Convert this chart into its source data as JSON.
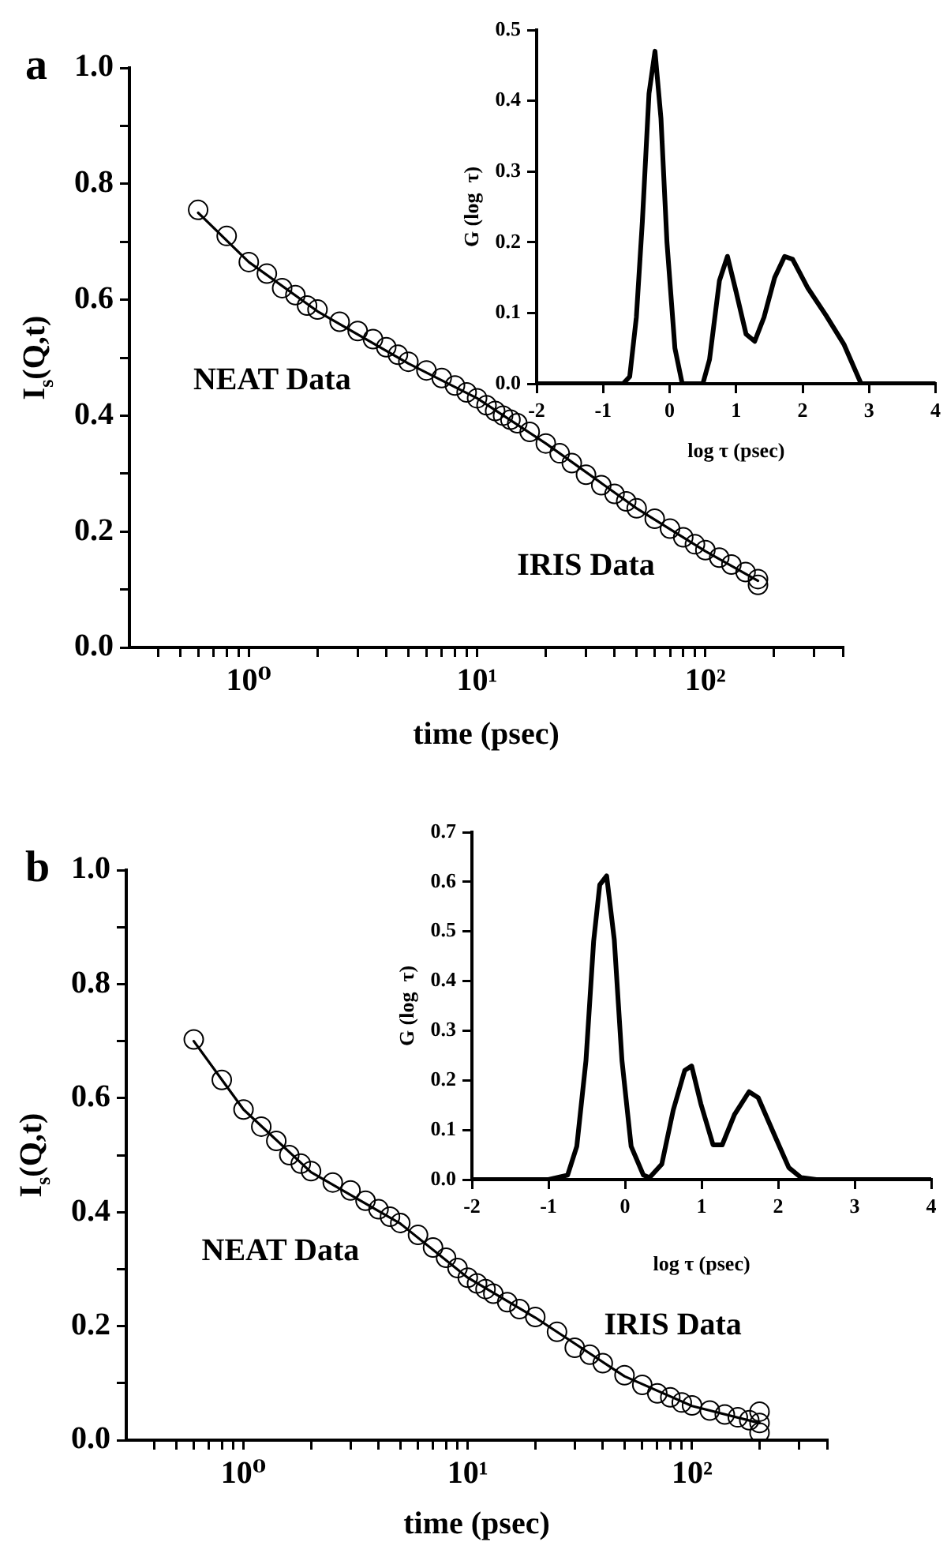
{
  "chart_data": [
    {
      "type": "scatter",
      "title": "a",
      "xlabel": "time (psec)",
      "ylabel": "I$_{s}$(Q,t)",
      "log": "x",
      "marker": "circle",
      "grid": false,
      "xlim": [
        0.3,
        400
      ],
      "xticks": [
        {
          "value": 0.4,
          "label": null
        },
        {
          "value": 0.5,
          "label": null
        },
        {
          "value": 0.6,
          "label": null
        },
        {
          "value": 0.7,
          "label": null
        },
        {
          "value": 0.8,
          "label": null
        },
        {
          "value": 0.9,
          "label": null
        },
        {
          "value": 1,
          "label": "10⁰"
        },
        {
          "value": 2,
          "label": null
        },
        {
          "value": 3,
          "label": null
        },
        {
          "value": 4,
          "label": null
        },
        {
          "value": 5,
          "label": null
        },
        {
          "value": 6,
          "label": null
        },
        {
          "value": 7,
          "label": null
        },
        {
          "value": 8,
          "label": null
        },
        {
          "value": 9,
          "label": null
        },
        {
          "value": 10,
          "label": "10¹"
        },
        {
          "value": 20,
          "label": null
        },
        {
          "value": 30,
          "label": null
        },
        {
          "value": 40,
          "label": null
        },
        {
          "value": 50,
          "label": null
        },
        {
          "value": 60,
          "label": null
        },
        {
          "value": 70,
          "label": null
        },
        {
          "value": 80,
          "label": null
        },
        {
          "value": 90,
          "label": null
        },
        {
          "value": 100,
          "label": "10²"
        },
        {
          "value": 200,
          "label": null
        },
        {
          "value": 300,
          "label": null
        },
        {
          "value": 400,
          "label": null
        }
      ],
      "ylim": [
        0,
        1
      ],
      "yticks": [
        {
          "value": 0,
          "label": "0.0"
        },
        {
          "value": 0.1,
          "label": null
        },
        0.2,
        {
          "value": 0.3,
          "label": null
        },
        0.4,
        {
          "value": 0.5,
          "label": null
        },
        0.6,
        {
          "value": 0.7,
          "label": null
        },
        0.8,
        {
          "value": 0.9,
          "label": null
        },
        {
          "value": 1,
          "label": "1.0"
        }
      ],
      "annotations": [
        "NEAT Data",
        "IRIS Data"
      ],
      "series": [
        {
          "color": "#000000",
          "x": [
            0.6,
            0.8,
            1.0,
            1.2,
            1.4,
            1.6,
            1.8,
            2,
            2.5,
            3,
            3.5,
            4,
            4.5,
            5,
            6,
            7,
            8,
            9,
            10,
            11,
            12,
            13,
            14,
            15,
            17,
            20,
            23,
            26,
            30,
            35,
            40,
            45,
            50,
            60,
            70,
            80,
            90,
            100,
            115,
            130,
            150,
            170,
            170
          ],
          "values": [
            0.755,
            0.71,
            0.665,
            0.645,
            0.62,
            0.608,
            0.59,
            0.583,
            0.562,
            0.546,
            0.532,
            0.518,
            0.505,
            0.493,
            0.478,
            0.465,
            0.452,
            0.44,
            0.43,
            0.418,
            0.408,
            0.4,
            0.393,
            0.387,
            0.372,
            0.352,
            0.335,
            0.318,
            0.298,
            0.28,
            0.265,
            0.252,
            0.24,
            0.222,
            0.205,
            0.19,
            0.178,
            0.168,
            0.155,
            0.143,
            0.13,
            0.118,
            0.108
          ]
        },
        {
          "type": "line",
          "marker": "none",
          "color": "#000000",
          "x": [
            0.6,
            1,
            2,
            5,
            10,
            20,
            50,
            100,
            170
          ],
          "values": [
            0.75,
            0.665,
            0.58,
            0.49,
            0.43,
            0.352,
            0.24,
            0.166,
            0.115
          ]
        }
      ]
    },
    {
      "type": "line",
      "xlabel": "log τ (psec)",
      "ylabel": "G (log  τ)",
      "marker": "none",
      "grid": false,
      "xlim": [
        -2,
        4
      ],
      "xticks": [
        -2,
        -1,
        0,
        1,
        2,
        3,
        4
      ],
      "ylim": [
        0,
        0.5
      ],
      "yticks": [
        {
          "value": 0,
          "label": "0.0"
        },
        0.1,
        0.2,
        0.3,
        0.4,
        0.5
      ],
      "series": [
        {
          "color": "#000000",
          "x": [
            -2,
            -1,
            -0.7,
            -0.6,
            -0.5,
            -0.41,
            -0.31,
            -0.22,
            -0.13,
            -0.04,
            0.08,
            0.19,
            0.5,
            0.6,
            0.75,
            0.87,
            1.0,
            1.15,
            1.28,
            1.42,
            1.58,
            1.73,
            1.85,
            2.08,
            2.35,
            2.62,
            2.88,
            4
          ],
          "values": [
            0,
            0,
            0,
            0.01,
            0.094,
            0.229,
            0.41,
            0.47,
            0.375,
            0.2,
            0.05,
            0,
            0,
            0.034,
            0.146,
            0.18,
            0.13,
            0.07,
            0.06,
            0.094,
            0.15,
            0.18,
            0.176,
            0.135,
            0.097,
            0.056,
            0,
            0
          ]
        }
      ]
    },
    {
      "type": "scatter",
      "title": "b",
      "xlabel": "time (psec)",
      "ylabel": "I$_{s}$(Q,t)",
      "log": "x",
      "marker": "circle",
      "grid": false,
      "xlim": [
        0.3,
        400
      ],
      "xticks": [
        {
          "value": 0.4,
          "label": null
        },
        {
          "value": 0.5,
          "label": null
        },
        {
          "value": 0.6,
          "label": null
        },
        {
          "value": 0.7,
          "label": null
        },
        {
          "value": 0.8,
          "label": null
        },
        {
          "value": 0.9,
          "label": null
        },
        {
          "value": 1,
          "label": "10⁰"
        },
        {
          "value": 2,
          "label": null
        },
        {
          "value": 3,
          "label": null
        },
        {
          "value": 4,
          "label": null
        },
        {
          "value": 5,
          "label": null
        },
        {
          "value": 6,
          "label": null
        },
        {
          "value": 7,
          "label": null
        },
        {
          "value": 8,
          "label": null
        },
        {
          "value": 9,
          "label": null
        },
        {
          "value": 10,
          "label": "10¹"
        },
        {
          "value": 20,
          "label": null
        },
        {
          "value": 30,
          "label": null
        },
        {
          "value": 40,
          "label": null
        },
        {
          "value": 50,
          "label": null
        },
        {
          "value": 60,
          "label": null
        },
        {
          "value": 70,
          "label": null
        },
        {
          "value": 80,
          "label": null
        },
        {
          "value": 90,
          "label": null
        },
        {
          "value": 100,
          "label": "10²"
        },
        {
          "value": 200,
          "label": null
        },
        {
          "value": 300,
          "label": null
        },
        {
          "value": 400,
          "label": null
        }
      ],
      "ylim": [
        0,
        1
      ],
      "yticks": [
        {
          "value": 0,
          "label": "0.0"
        },
        {
          "value": 0.1,
          "label": null
        },
        0.2,
        {
          "value": 0.3,
          "label": null
        },
        0.4,
        {
          "value": 0.5,
          "label": null
        },
        0.6,
        {
          "value": 0.7,
          "label": null
        },
        0.8,
        {
          "value": 0.9,
          "label": null
        },
        {
          "value": 1,
          "label": "1.0"
        }
      ],
      "annotations": [
        "NEAT Data",
        "IRIS Data"
      ],
      "series": [
        {
          "color": "#000000",
          "x": [
            0.6,
            0.8,
            1,
            1.2,
            1.4,
            1.6,
            1.8,
            2,
            2.5,
            3,
            3.5,
            4,
            4.5,
            5,
            6,
            7,
            8,
            9,
            10,
            11,
            12,
            13,
            15,
            17,
            20,
            25,
            30,
            35,
            40,
            50,
            60,
            70,
            80,
            90,
            100,
            120,
            140,
            160,
            180,
            200,
            200,
            200
          ],
          "values": [
            0.703,
            0.632,
            0.58,
            0.55,
            0.525,
            0.5,
            0.485,
            0.472,
            0.452,
            0.438,
            0.42,
            0.405,
            0.392,
            0.381,
            0.36,
            0.338,
            0.32,
            0.302,
            0.285,
            0.275,
            0.265,
            0.257,
            0.242,
            0.23,
            0.216,
            0.19,
            0.162,
            0.15,
            0.135,
            0.114,
            0.097,
            0.082,
            0.075,
            0.066,
            0.061,
            0.052,
            0.045,
            0.04,
            0.035,
            0.03,
            0.05,
            0.013
          ]
        },
        {
          "type": "line",
          "marker": "none",
          "color": "#000000",
          "x": [
            0.6,
            1,
            2,
            5,
            10,
            20,
            50,
            100,
            200
          ],
          "values": [
            0.7,
            0.58,
            0.47,
            0.38,
            0.285,
            0.215,
            0.112,
            0.06,
            0.03
          ]
        }
      ]
    },
    {
      "type": "line",
      "xlabel": "log τ (psec)",
      "ylabel": "G (log  τ)",
      "marker": "none",
      "grid": false,
      "xlim": [
        -2,
        4
      ],
      "xticks": [
        -2,
        -1,
        0,
        1,
        2,
        3,
        4
      ],
      "ylim": [
        0,
        0.7
      ],
      "yticks": [
        {
          "value": 0,
          "label": "0.0"
        },
        0.1,
        0.2,
        0.3,
        0.4,
        0.5,
        0.6,
        0.7
      ],
      "series": [
        {
          "color": "#000000",
          "x": [
            -2,
            -1,
            -0.75,
            -0.63,
            -0.51,
            -0.41,
            -0.33,
            -0.24,
            -0.14,
            -0.04,
            0.08,
            0.24,
            0.32,
            0.48,
            0.63,
            0.78,
            0.87,
            0.99,
            1.15,
            1.27,
            1.43,
            1.62,
            1.74,
            1.98,
            2.14,
            2.3,
            2.5,
            4
          ],
          "values": [
            0,
            0,
            0.009,
            0.067,
            0.24,
            0.48,
            0.594,
            0.612,
            0.483,
            0.24,
            0.067,
            0.009,
            0.004,
            0.031,
            0.14,
            0.22,
            0.229,
            0.153,
            0.07,
            0.07,
            0.131,
            0.177,
            0.165,
            0.08,
            0.024,
            0.004,
            0,
            0
          ]
        }
      ]
    }
  ]
}
